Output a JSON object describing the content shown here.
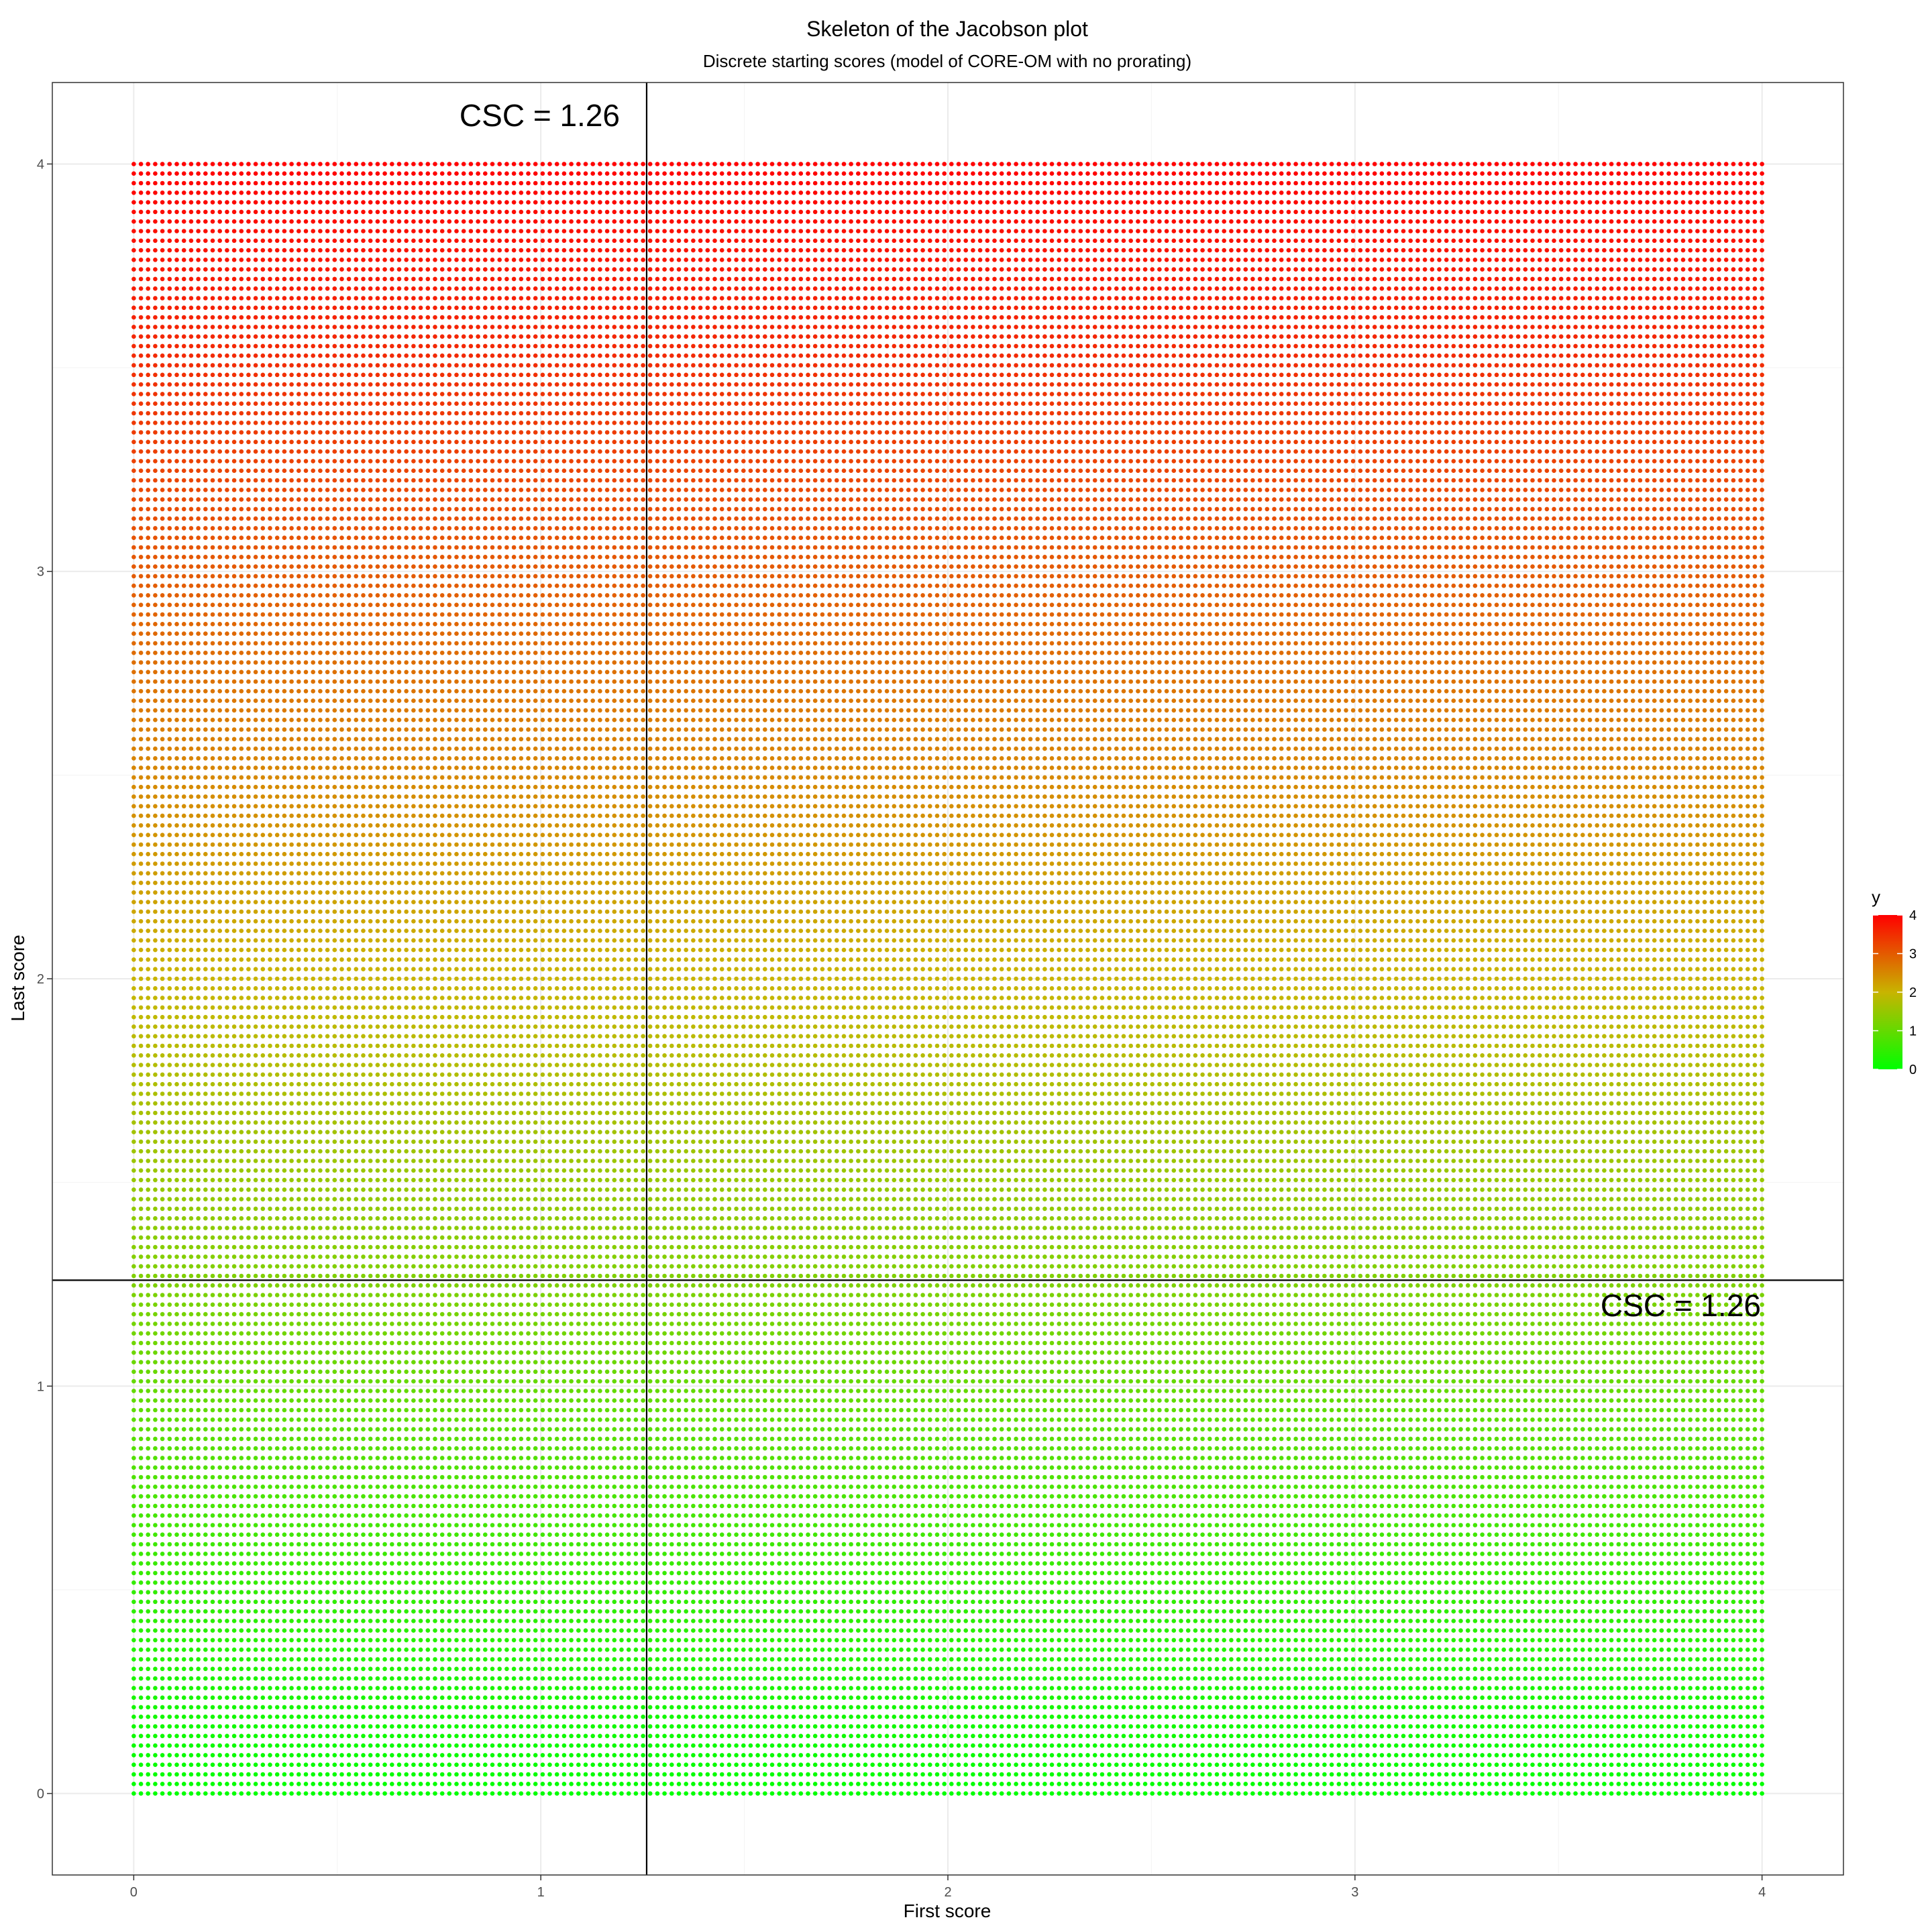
{
  "chart_data": {
    "type": "scatter",
    "title": "Skeleton of the Jacobson plot",
    "subtitle": "Discrete starting scores (model of CORE-OM with no prorating)",
    "xlabel": "First score",
    "ylabel": "Last score",
    "xlim": [
      -0.2,
      4.2
    ],
    "ylim": [
      -0.2,
      4.2
    ],
    "x_ticks": [
      0,
      1,
      2,
      3,
      4
    ],
    "y_ticks": [
      0,
      1,
      2,
      3,
      4
    ],
    "x_tick_labels": [
      "0",
      "1",
      "2",
      "3",
      "4"
    ],
    "y_tick_labels": [
      "0",
      "1",
      "2",
      "3",
      "4"
    ],
    "grid": true,
    "points": {
      "x_start": 0,
      "x_end": 4,
      "x_step": 0.01765,
      "y_start": 0,
      "y_end": 4,
      "y_step": 0.02353,
      "description_of_grid": "regular lattice of points covering 0..4 on both axes"
    },
    "color_by": "y",
    "color_scale": {
      "low": "#00ff00",
      "high": "#ff0000",
      "low_value": 0,
      "high_value": 4
    },
    "reference_lines": [
      {
        "orientation": "vertical",
        "value": 1.26
      },
      {
        "orientation": "horizontal",
        "value": 1.26
      }
    ],
    "annotations": [
      {
        "text": "CSC = 1.26",
        "anchor": "top of vertical line"
      },
      {
        "text": "CSC = 1.26",
        "anchor": "right end of horizontal line"
      }
    ],
    "legend": {
      "title": "y",
      "placement": "right",
      "labels": [
        "4",
        "3",
        "2",
        "1",
        "0"
      ]
    }
  }
}
